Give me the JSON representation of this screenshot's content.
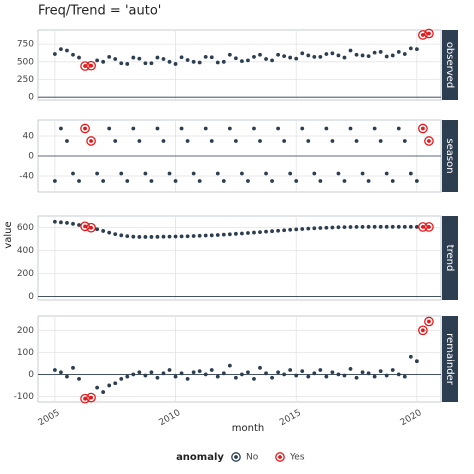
{
  "chart_data": {
    "type": "scatter",
    "title": "Freq/Trend = 'auto'",
    "x_label": "month",
    "y_label": "value",
    "x": [
      2005,
      2005.25,
      2005.5,
      2005.75,
      2006,
      2006.25,
      2006.5,
      2006.75,
      2007,
      2007.25,
      2007.5,
      2007.75,
      2008,
      2008.25,
      2008.5,
      2008.75,
      2009,
      2009.25,
      2009.5,
      2009.75,
      2010,
      2010.25,
      2010.5,
      2010.75,
      2011,
      2011.25,
      2011.5,
      2011.75,
      2012,
      2012.25,
      2012.5,
      2012.75,
      2013,
      2013.25,
      2013.5,
      2013.75,
      2014,
      2014.25,
      2014.5,
      2014.75,
      2015,
      2015.25,
      2015.5,
      2015.75,
      2016,
      2016.25,
      2016.5,
      2016.75,
      2017,
      2017.25,
      2017.5,
      2017.75,
      2018,
      2018.25,
      2018.5,
      2018.75,
      2019,
      2019.25,
      2019.5,
      2019.75,
      2020,
      2020.25,
      2020.5
    ],
    "xlim": [
      2004.3,
      2021
    ],
    "xticks": [
      2005,
      2010,
      2015,
      2020
    ],
    "grid": true,
    "anomaly": [
      "No",
      "No",
      "No",
      "No",
      "No",
      "Yes",
      "Yes",
      "No",
      "No",
      "No",
      "No",
      "No",
      "No",
      "No",
      "No",
      "No",
      "No",
      "No",
      "No",
      "No",
      "No",
      "No",
      "No",
      "No",
      "No",
      "No",
      "No",
      "No",
      "No",
      "No",
      "No",
      "No",
      "No",
      "No",
      "No",
      "No",
      "No",
      "No",
      "No",
      "No",
      "No",
      "No",
      "No",
      "No",
      "No",
      "No",
      "No",
      "No",
      "No",
      "No",
      "No",
      "No",
      "No",
      "No",
      "No",
      "No",
      "No",
      "No",
      "No",
      "No",
      "No",
      "Yes",
      "Yes"
    ],
    "legend_title": "anomaly",
    "anomaly_levels": [
      {
        "name": "No",
        "color": "#2c3e50"
      },
      {
        "name": "Yes",
        "color": "#e31a1c"
      }
    ],
    "panels": [
      {
        "name": "observed",
        "ylim": [
          -40,
          950
        ],
        "yticks": [
          0,
          250,
          500,
          750
        ],
        "values": [
          610,
          680,
          660,
          600,
          560,
          440,
          445,
          520,
          500,
          570,
          540,
          480,
          470,
          560,
          545,
          480,
          480,
          560,
          540,
          500,
          470,
          565,
          525,
          500,
          490,
          570,
          565,
          490,
          500,
          600,
          550,
          510,
          520,
          570,
          600,
          540,
          520,
          600,
          580,
          560,
          545,
          620,
          590,
          570,
          570,
          610,
          620,
          590,
          560,
          660,
          600,
          590,
          580,
          630,
          640,
          575,
          590,
          640,
          610,
          690,
          680,
          880,
          900
        ]
      },
      {
        "name": "season",
        "ylim": [
          -72,
          72
        ],
        "yticks": [
          -40,
          0,
          40
        ],
        "values": [
          -50,
          55,
          30,
          -35,
          -50,
          55,
          30,
          -35,
          -50,
          55,
          30,
          -35,
          -50,
          55,
          30,
          -35,
          -50,
          55,
          30,
          -35,
          -50,
          55,
          30,
          -35,
          -50,
          55,
          30,
          -35,
          -50,
          55,
          30,
          -35,
          -50,
          55,
          30,
          -35,
          -50,
          55,
          30,
          -35,
          -50,
          55,
          30,
          -35,
          -50,
          55,
          30,
          -35,
          -50,
          55,
          30,
          -35,
          -50,
          55,
          30,
          -35,
          -50,
          55,
          30,
          -35,
          -50,
          55,
          30
        ]
      },
      {
        "name": "trend",
        "ylim": [
          -30,
          700
        ],
        "yticks": [
          0,
          200,
          400,
          600
        ],
        "values": [
          650,
          645,
          640,
          632,
          622,
          610,
          598,
          585,
          570,
          555,
          542,
          532,
          525,
          520,
          518,
          518,
          518,
          519,
          520,
          521,
          522,
          523,
          524,
          526,
          528,
          530,
          532,
          535,
          538,
          541,
          545,
          548,
          552,
          556,
          560,
          564,
          568,
          572,
          576,
          580,
          584,
          587,
          590,
          593,
          596,
          598,
          600,
          602,
          603,
          604,
          605,
          605,
          606,
          606,
          606,
          606,
          606,
          606,
          606,
          606,
          605,
          605,
          605
        ]
      },
      {
        "name": "remainder",
        "ylim": [
          -125,
          265
        ],
        "yticks": [
          -100,
          0,
          100,
          200
        ],
        "values": [
          20,
          10,
          -10,
          30,
          -20,
          -110,
          -105,
          -60,
          -80,
          -50,
          -40,
          -20,
          -10,
          0,
          10,
          -5,
          10,
          -15,
          5,
          20,
          -10,
          5,
          -20,
          10,
          15,
          0,
          20,
          -10,
          5,
          40,
          -15,
          0,
          10,
          -20,
          30,
          5,
          -15,
          10,
          0,
          20,
          -5,
          15,
          -10,
          5,
          20,
          -10,
          10,
          0,
          -5,
          25,
          -15,
          10,
          5,
          -10,
          15,
          -5,
          20,
          0,
          -10,
          80,
          60,
          200,
          240
        ]
      }
    ]
  }
}
